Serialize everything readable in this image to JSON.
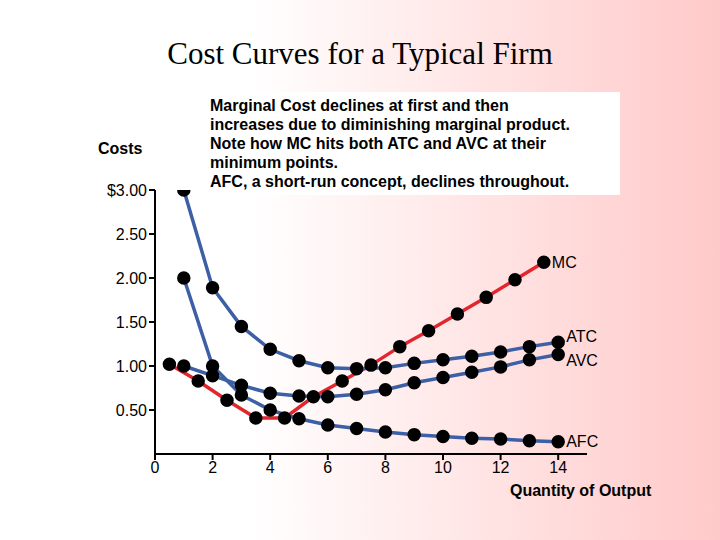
{
  "chart_data": {
    "type": "line",
    "title": "Cost Curves for a Typical Firm",
    "annotation": [
      "Marginal Cost declines at first and then",
      "increases due to diminishing marginal product.",
      "Note how MC hits both ATC and AVC at their",
      "minimum points.",
      "AFC, a short-run concept, declines throughout."
    ],
    "y_label": "Costs",
    "x_label": "Quantity of Output",
    "xlim": [
      0,
      15
    ],
    "xticks": [
      0,
      2,
      4,
      6,
      8,
      10,
      12,
      14
    ],
    "ylim": [
      0,
      3
    ],
    "yticks": [
      {
        "value": 0.5,
        "label": "0.50"
      },
      {
        "value": 1,
        "label": "1.00"
      },
      {
        "value": 1.5,
        "label": "1.50"
      },
      {
        "value": 2,
        "label": "2.00"
      },
      {
        "value": 2.5,
        "label": "2.50"
      },
      {
        "value": 3,
        "label": "$3.00"
      }
    ],
    "grid": false,
    "marker": "circle",
    "series": [
      {
        "name": "MC",
        "color": "#e3262d",
        "x": [
          0.5,
          1.5,
          2.5,
          3.5,
          4.5,
          5.5,
          6.5,
          7.5,
          8.5,
          9.5,
          10.5,
          11.5,
          12.5,
          13.5
        ],
        "values": [
          1.02,
          0.83,
          0.61,
          0.41,
          0.41,
          0.65,
          0.83,
          1.01,
          1.22,
          1.4,
          1.59,
          1.78,
          1.98,
          2.18
        ]
      },
      {
        "name": "ATC",
        "color": "#3d5fa6",
        "x": [
          1,
          2,
          3,
          4,
          5,
          6,
          7,
          8,
          9,
          10,
          11,
          12,
          13,
          14
        ],
        "values": [
          3.0,
          1.89,
          1.45,
          1.19,
          1.06,
          0.98,
          0.97,
          0.98,
          1.03,
          1.07,
          1.11,
          1.16,
          1.22,
          1.27
        ]
      },
      {
        "name": "AVC",
        "color": "#3d5fa6",
        "x": [
          1,
          2,
          3,
          4,
          5,
          6,
          7,
          8,
          9,
          10,
          11,
          12,
          13,
          14
        ],
        "values": [
          1.0,
          0.89,
          0.78,
          0.69,
          0.66,
          0.65,
          0.68,
          0.73,
          0.81,
          0.87,
          0.93,
          0.99,
          1.07,
          1.13
        ]
      },
      {
        "name": "AFC",
        "color": "#3d5fa6",
        "x": [
          1,
          2,
          3,
          4,
          5,
          6,
          7,
          8,
          9,
          10,
          11,
          12,
          13,
          14
        ],
        "values": [
          2.0,
          1.0,
          0.67,
          0.5,
          0.4,
          0.33,
          0.29,
          0.25,
          0.22,
          0.2,
          0.18,
          0.17,
          0.15,
          0.14
        ]
      }
    ]
  }
}
